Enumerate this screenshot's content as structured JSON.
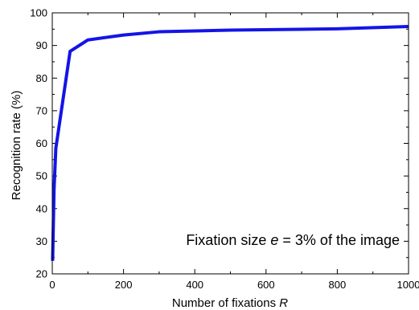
{
  "chart_data": {
    "type": "line",
    "title": "",
    "xlabel": "Number of fixations",
    "xlabel_var": "R",
    "ylabel": "Recognition rate (%)",
    "xlim": [
      0,
      1000
    ],
    "ylim": [
      20,
      100
    ],
    "x_ticks": [
      0,
      200,
      400,
      600,
      800,
      1000
    ],
    "y_ticks": [
      20,
      30,
      40,
      50,
      60,
      70,
      80,
      90,
      100
    ],
    "grid": false,
    "legend": "none",
    "series": [
      {
        "color": "#1414e6",
        "x": [
          1,
          5,
          10,
          50,
          100,
          200,
          300,
          500,
          800,
          1000
        ],
        "y": [
          24,
          46,
          58.5,
          88.2,
          91.7,
          93.2,
          94.2,
          94.7,
          95.1,
          95.8
        ]
      }
    ],
    "annotation": {
      "prefix": "Fixation size",
      "var": "e",
      "suffix": "= 3% of the image"
    }
  }
}
